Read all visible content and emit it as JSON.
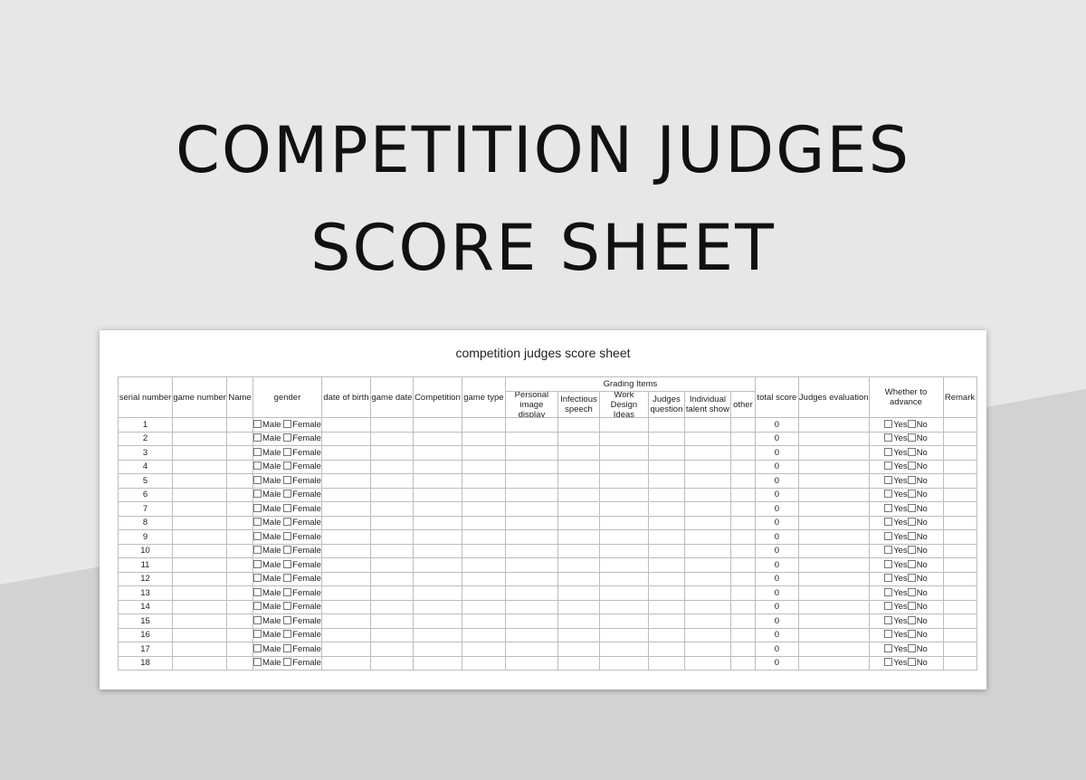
{
  "title_line1": "COMPETITION JUDGES",
  "title_line2": "SCORE SHEET",
  "sheet": {
    "title": "competition judges score sheet",
    "headers": {
      "serial": "serial number",
      "game_number": "game number",
      "name": "Name",
      "gender": "gender",
      "dob": "date of birth",
      "game_date": "game date",
      "competition": "Competition",
      "game_type": "game type",
      "grading": "Grading Items",
      "total": "total score",
      "evaluation": "Judges evaluation",
      "advance": "Whether to advance",
      "remark": "Remark"
    },
    "grading_items": [
      "Personal image display",
      "Infectious speech",
      "Work Design Ideas",
      "Judges question",
      "Individual talent show",
      "other"
    ],
    "gender_options": [
      "Male",
      "Female"
    ],
    "advance_options": [
      "Yes",
      "No"
    ],
    "rows": [
      {
        "serial": "1",
        "total": "0"
      },
      {
        "serial": "2",
        "total": "0"
      },
      {
        "serial": "3",
        "total": "0"
      },
      {
        "serial": "4",
        "total": "0"
      },
      {
        "serial": "5",
        "total": "0"
      },
      {
        "serial": "6",
        "total": "0"
      },
      {
        "serial": "7",
        "total": "0"
      },
      {
        "serial": "8",
        "total": "0"
      },
      {
        "serial": "9",
        "total": "0"
      },
      {
        "serial": "10",
        "total": "0"
      },
      {
        "serial": "11",
        "total": "0"
      },
      {
        "serial": "12",
        "total": "0"
      },
      {
        "serial": "13",
        "total": "0"
      },
      {
        "serial": "14",
        "total": "0"
      },
      {
        "serial": "15",
        "total": "0"
      },
      {
        "serial": "16",
        "total": "0"
      },
      {
        "serial": "17",
        "total": "0"
      },
      {
        "serial": "18",
        "total": "0"
      }
    ]
  }
}
